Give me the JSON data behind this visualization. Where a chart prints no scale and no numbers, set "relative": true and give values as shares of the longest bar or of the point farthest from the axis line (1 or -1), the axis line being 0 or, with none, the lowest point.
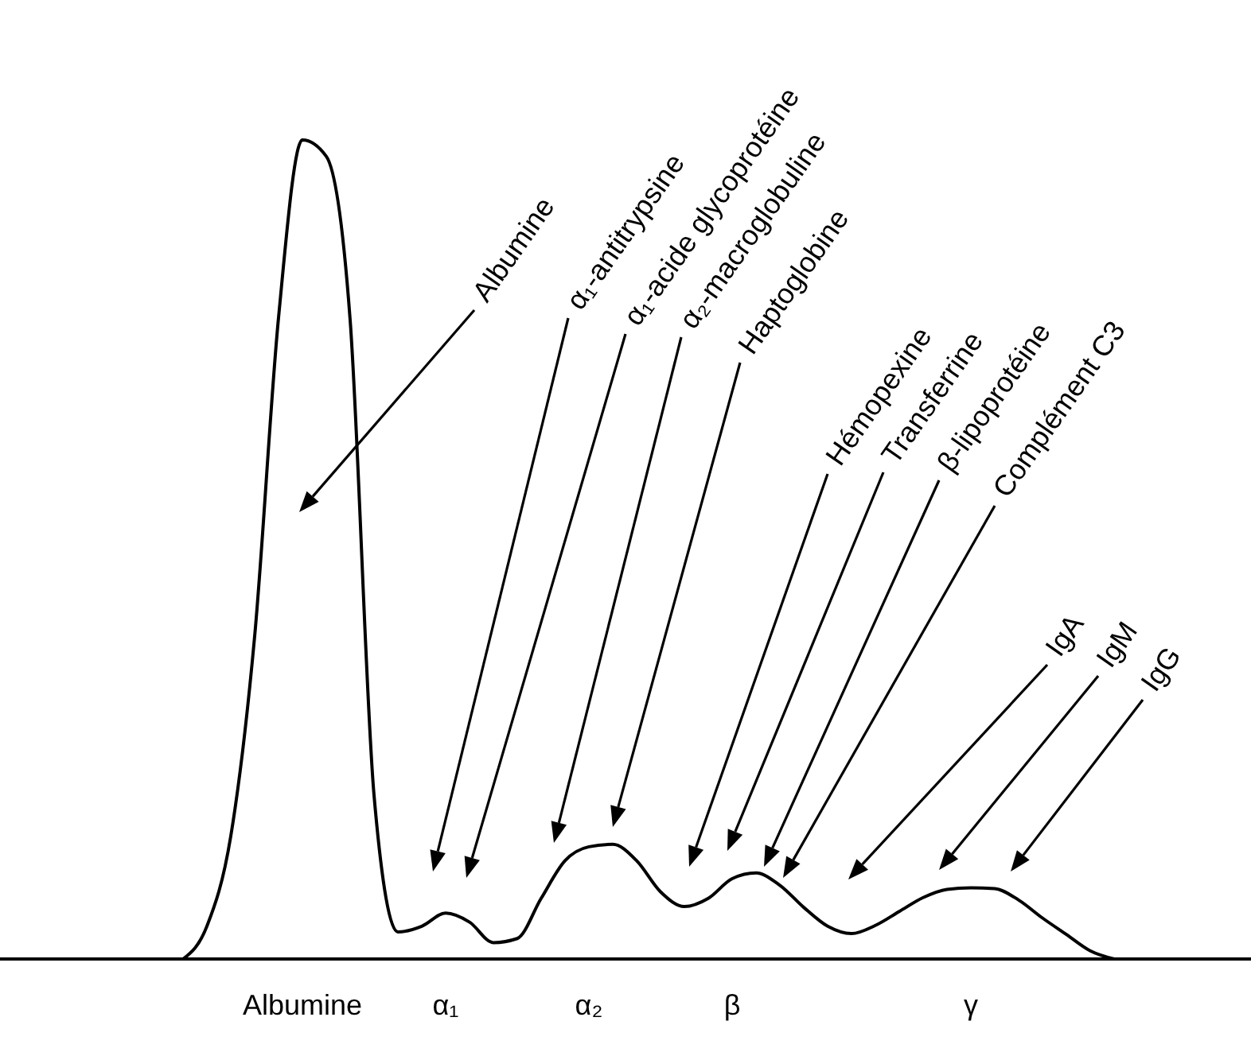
{
  "chart_data": {
    "type": "line",
    "relative": true,
    "color": "#000000",
    "categories": [
      null,
      null,
      null,
      null,
      null,
      "Albumine",
      null,
      null,
      null,
      null,
      null,
      "α₁",
      null,
      null,
      null,
      null,
      null,
      "α₂",
      null,
      null,
      null,
      null,
      null,
      "β",
      null,
      null,
      null,
      null,
      null,
      null,
      null,
      null,
      null,
      "γ",
      null,
      null,
      null,
      null,
      null,
      null
    ],
    "values": [
      0,
      0.04,
      0.15,
      0.394,
      0.783,
      1,
      0.98,
      0.78,
      0.2,
      0.033,
      0.04,
      0.056,
      0.045,
      0.02,
      0.025,
      0.074,
      0.12,
      0.137,
      0.14,
      0.12,
      0.082,
      0.064,
      0.074,
      0.098,
      0.105,
      0.09,
      0.063,
      0.04,
      0.031,
      0.041,
      0.058,
      0.075,
      0.085,
      0.087,
      0.086,
      0.072,
      0.05,
      0.03,
      0.01,
      0
    ],
    "annotations": [
      "Albumine",
      "α₁-antitrypsine",
      "α₁-acide glycoprotéine",
      "α₂-macroglobuline",
      "Haptoglobine",
      "Hémopexine",
      "Transferrine",
      "β-lipoprotéine",
      "Complément C3",
      "IgA",
      "IgM",
      "IgG"
    ]
  }
}
